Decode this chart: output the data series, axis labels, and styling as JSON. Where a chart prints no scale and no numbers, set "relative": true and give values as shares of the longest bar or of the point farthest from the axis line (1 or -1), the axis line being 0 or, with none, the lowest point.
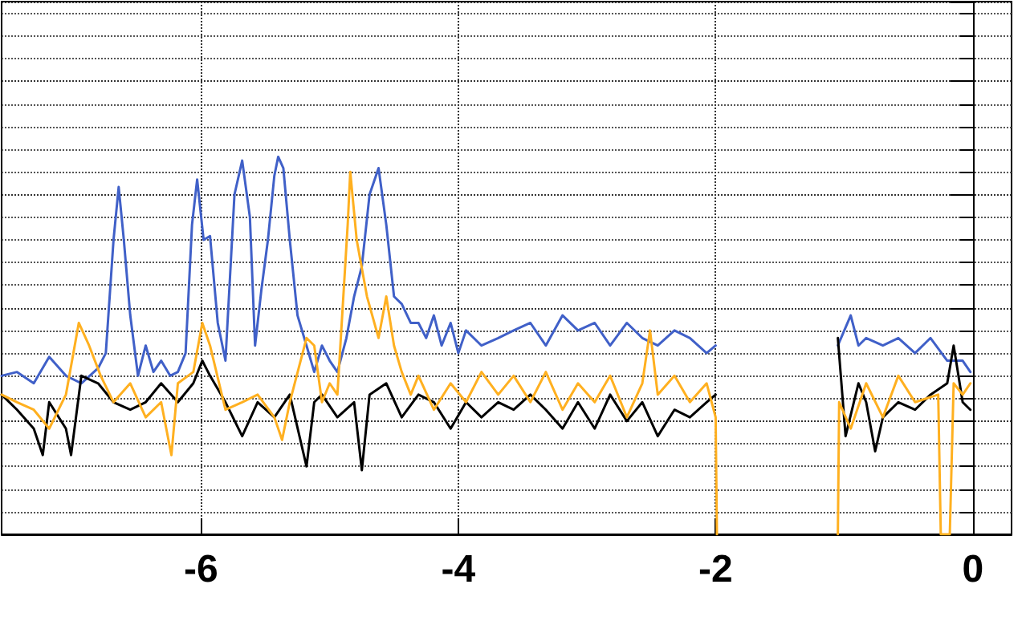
{
  "chart_data": {
    "type": "line",
    "relative": true,
    "grid": true,
    "xlim": [
      -7.55,
      0.3
    ],
    "xticks": [
      -6,
      -4,
      -2,
      0
    ],
    "series": [
      {
        "color": "#4060c8",
        "x": [
          -7.55,
          -7.43,
          -7.3,
          -7.18,
          -7.05,
          -6.93,
          -6.8,
          -6.74,
          -6.68,
          -6.64,
          -6.6,
          -6.55,
          -6.49,
          -6.43,
          -6.37,
          -6.31,
          -6.24,
          -6.18,
          -6.12,
          -6.07,
          -6.03,
          -5.98,
          -5.93,
          -5.87,
          -5.81,
          -5.74,
          -5.68,
          -5.62,
          -5.58,
          -5.53,
          -5.48,
          -5.43,
          -5.4,
          -5.36,
          -5.31,
          -5.25,
          -5.18,
          -5.12,
          -5.06,
          -5.0,
          -4.94,
          -4.87,
          -4.81,
          -4.75,
          -4.69,
          -4.62,
          -4.56,
          -4.5,
          -4.44,
          -4.37,
          -4.31,
          -4.25,
          -4.19,
          -4.13,
          -4.06,
          -4.0,
          -3.94,
          -3.82,
          -3.69,
          -3.57,
          -3.44,
          -3.32,
          -3.19,
          -3.07,
          -2.94,
          -2.82,
          -2.69,
          -2.57,
          -2.45,
          -2.32,
          -2.2,
          -2.07,
          -2.0,
          -1.5,
          -1.05,
          -0.95,
          -0.89,
          -0.83,
          -0.7,
          -0.58,
          -0.45,
          -0.33,
          -0.2,
          -0.08,
          -0.02
        ],
        "values": [
          0.42,
          0.43,
          0.4,
          0.47,
          0.42,
          0.4,
          0.44,
          0.48,
          0.78,
          0.92,
          0.78,
          0.58,
          0.42,
          0.5,
          0.43,
          0.46,
          0.42,
          0.43,
          0.48,
          0.82,
          0.94,
          0.78,
          0.79,
          0.56,
          0.46,
          0.9,
          0.99,
          0.84,
          0.5,
          0.65,
          0.78,
          0.95,
          1,
          0.97,
          0.78,
          0.58,
          0.5,
          0.43,
          0.5,
          0.46,
          0.43,
          0.52,
          0.63,
          0.71,
          0.9,
          0.97,
          0.82,
          0.63,
          0.61,
          0.56,
          0.56,
          0.52,
          0.58,
          0.5,
          0.56,
          0.48,
          0.54,
          0.5,
          0.52,
          0.54,
          0.56,
          0.5,
          0.58,
          0.54,
          0.56,
          0.5,
          0.56,
          0.52,
          0.5,
          0.54,
          0.52,
          0.48,
          0.5,
          null,
          0.5,
          0.58,
          0.5,
          0.52,
          0.5,
          0.52,
          0.48,
          0.52,
          0.46,
          0.46,
          0.43
        ]
      },
      {
        "color": "#000000",
        "x": [
          -7.55,
          -7.43,
          -7.3,
          -7.23,
          -7.18,
          -7.05,
          -7.01,
          -6.93,
          -6.8,
          -6.68,
          -6.55,
          -6.43,
          -6.31,
          -6.18,
          -6.06,
          -5.99,
          -5.93,
          -5.81,
          -5.68,
          -5.56,
          -5.43,
          -5.31,
          -5.18,
          -5.12,
          -5.06,
          -4.94,
          -4.81,
          -4.75,
          -4.69,
          -4.56,
          -4.44,
          -4.31,
          -4.19,
          -4.06,
          -3.94,
          -3.82,
          -3.69,
          -3.57,
          -3.44,
          -3.32,
          -3.19,
          -3.07,
          -2.94,
          -2.82,
          -2.69,
          -2.57,
          -2.45,
          -2.32,
          -2.2,
          -2.07,
          -2.0,
          -1.5,
          -1.05,
          -0.99,
          -0.89,
          -0.83,
          -0.76,
          -0.7,
          -0.58,
          -0.45,
          -0.33,
          -0.2,
          -0.15,
          -0.08,
          -0.02
        ],
        "values": [
          0.37,
          0.33,
          0.28,
          0.21,
          0.35,
          0.28,
          0.21,
          0.42,
          0.4,
          0.35,
          0.33,
          0.35,
          0.4,
          0.35,
          0.4,
          0.46,
          0.42,
          0.35,
          0.26,
          0.35,
          0.31,
          0.37,
          0.18,
          0.35,
          0.37,
          0.31,
          0.35,
          0.17,
          0.37,
          0.4,
          0.31,
          0.37,
          0.35,
          0.28,
          0.35,
          0.31,
          0.35,
          0.33,
          0.37,
          0.33,
          0.28,
          0.35,
          0.28,
          0.37,
          0.3,
          0.35,
          0.26,
          0.33,
          0.31,
          0.35,
          0.37,
          null,
          0.52,
          0.26,
          0.4,
          0.35,
          0.22,
          0.31,
          0.35,
          0.33,
          0.37,
          0.4,
          0.5,
          0.35,
          0.33
        ]
      },
      {
        "color": "#ffb020",
        "x": [
          -7.55,
          -7.43,
          -7.3,
          -7.18,
          -7.05,
          -6.95,
          -6.87,
          -6.78,
          -6.68,
          -6.55,
          -6.43,
          -6.31,
          -6.23,
          -6.18,
          -6.06,
          -5.99,
          -5.93,
          -5.81,
          -5.68,
          -5.56,
          -5.43,
          -5.37,
          -5.31,
          -5.18,
          -5.12,
          -5.06,
          -5.0,
          -4.94,
          -4.86,
          -4.84,
          -4.79,
          -4.71,
          -4.62,
          -4.56,
          -4.5,
          -4.44,
          -4.37,
          -4.31,
          -4.19,
          -4.06,
          -3.94,
          -3.82,
          -3.69,
          -3.57,
          -3.44,
          -3.32,
          -3.19,
          -3.07,
          -2.94,
          -2.82,
          -2.69,
          -2.57,
          -2.51,
          -2.45,
          -2.32,
          -2.2,
          -2.07,
          -2.0,
          -1.99,
          -1.5,
          -1.05,
          -1.04,
          -0.95,
          -0.83,
          -0.7,
          -0.58,
          -0.45,
          -0.27,
          -0.25,
          -0.18,
          -0.15,
          -0.08,
          -0.02
        ],
        "values": [
          0.37,
          0.35,
          0.33,
          0.28,
          0.37,
          0.56,
          0.5,
          0.42,
          0.35,
          0.4,
          0.31,
          0.35,
          0.21,
          0.4,
          0.43,
          0.56,
          0.5,
          0.33,
          0.35,
          0.37,
          0.31,
          0.25,
          0.35,
          0.52,
          0.5,
          0.35,
          0.4,
          0.37,
          0.82,
          0.96,
          0.78,
          0.63,
          0.52,
          0.63,
          0.5,
          0.43,
          0.37,
          0.42,
          0.33,
          0.4,
          0.35,
          0.43,
          0.37,
          0.42,
          0.35,
          0.43,
          0.33,
          0.4,
          0.35,
          0.42,
          0.31,
          0.4,
          0.54,
          0.37,
          0.42,
          0.35,
          0.4,
          0.31,
          0,
          null,
          0,
          0.35,
          0.28,
          0.4,
          0.31,
          0.42,
          0.35,
          0.37,
          0,
          0,
          0.4,
          0.37,
          0.4
        ]
      }
    ]
  }
}
